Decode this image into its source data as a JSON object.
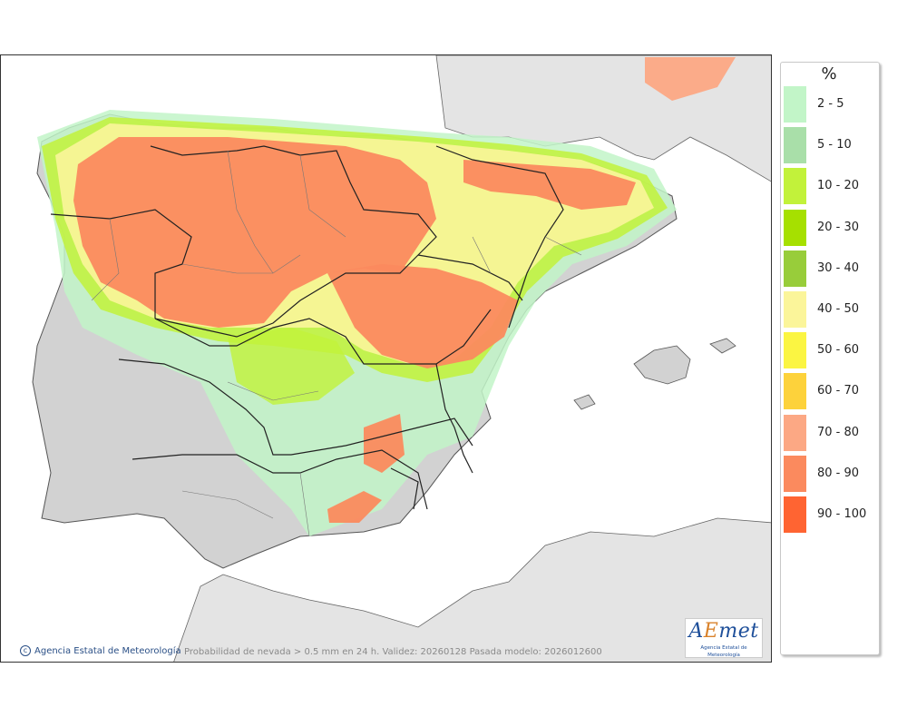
{
  "map": {
    "caption": "Probabilidad de nevada > 0.5 mm en 24 h. Validez: 20260128 Pasada modelo: 2026012600",
    "credit": "Agencia Estatal de Meteorología",
    "logo": {
      "text": "AEmet",
      "subtext": "Agencia Estatal de Meteorología"
    }
  },
  "legend": {
    "unit": "%",
    "items": [
      {
        "label": "2 - 5",
        "color": "#c2f5c8"
      },
      {
        "label": "5 - 10",
        "color": "#a9dfa9"
      },
      {
        "label": "10 - 20",
        "color": "#c2f23a"
      },
      {
        "label": "20 - 30",
        "color": "#a6e000"
      },
      {
        "label": "30 - 40",
        "color": "#98cd3a"
      },
      {
        "label": "40 - 50",
        "color": "#fbf59a"
      },
      {
        "label": "50 - 60",
        "color": "#fbf542"
      },
      {
        "label": "60 - 70",
        "color": "#fdd23b"
      },
      {
        "label": "70 - 80",
        "color": "#fca884"
      },
      {
        "label": "80 - 90",
        "color": "#fb8a5e"
      },
      {
        "label": "90 - 100",
        "color": "#ff6432"
      }
    ]
  }
}
